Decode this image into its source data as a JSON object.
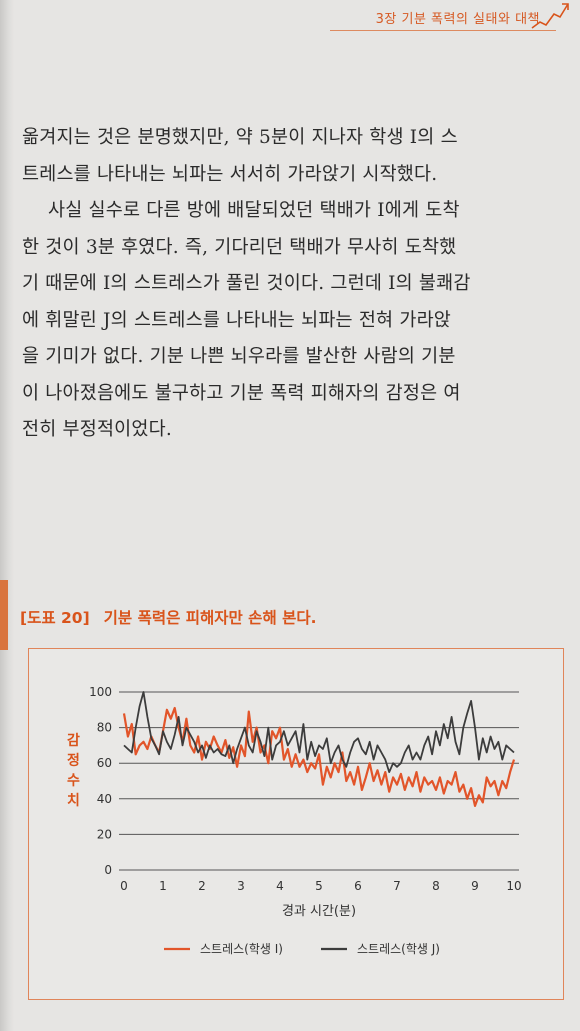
{
  "header": {
    "running_title": "3장 기분 폭력의 실태와 대책"
  },
  "body_paragraphs": [
    {
      "lines": [
        "옮겨지는 것은 분명했지만, 약 5분이 지나자 학생 I의 스",
        "트레스를 나타내는 뇌파는 서서히 가라앉기 시작했다."
      ]
    },
    {
      "lines": [
        "사실 실수로 다른 방에 배달되었던 택배가 I에게 도착",
        "한 것이 3분 후였다. 즉, 기다리던 택배가 무사히 도착했",
        "기 때문에 I의 스트레스가 풀린 것이다. 그런데 I의 불쾌감",
        "에 휘말린 J의 스트레스를 나타내는 뇌파는 전혀 가라앉",
        "을 기미가 없다. 기분 나쁜 뇌우라를 발산한 사람의 기분",
        "이 나아졌음에도 불구하고 기분 폭력 피해자의 감정은 여",
        "전히 부정적이었다."
      ]
    }
  ],
  "figure": {
    "number": "[도표 20]",
    "title": "기분 폭력은 피해자만 손해 본다."
  },
  "chart_data": {
    "type": "line",
    "title": "",
    "xlabel": "경과 시간(분)",
    "ylabel": "감정 수치",
    "xlim": [
      0,
      10
    ],
    "ylim": [
      0,
      100
    ],
    "x_ticks": [
      0,
      1,
      2,
      3,
      4,
      5,
      6,
      7,
      8,
      9,
      10
    ],
    "y_ticks": [
      0,
      20,
      40,
      60,
      80,
      100
    ],
    "grid": "horizontal",
    "legend_position": "bottom",
    "colors": {
      "I": "#e2552a",
      "J": "#3c3c3c",
      "grid": "#555555",
      "accent": "#d9541b"
    },
    "series": [
      {
        "name": "스트레스(학생 I)",
        "color": "#e2552a",
        "x": [
          0,
          0.1,
          0.2,
          0.3,
          0.4,
          0.5,
          0.6,
          0.7,
          0.8,
          0.9,
          1.0,
          1.1,
          1.2,
          1.3,
          1.4,
          1.5,
          1.6,
          1.7,
          1.8,
          1.9,
          2.0,
          2.1,
          2.2,
          2.3,
          2.4,
          2.5,
          2.6,
          2.7,
          2.8,
          2.9,
          3.0,
          3.1,
          3.2,
          3.3,
          3.4,
          3.5,
          3.6,
          3.7,
          3.8,
          3.9,
          4.0,
          4.1,
          4.2,
          4.3,
          4.4,
          4.5,
          4.6,
          4.7,
          4.8,
          4.9,
          5.0,
          5.1,
          5.2,
          5.3,
          5.4,
          5.5,
          5.6,
          5.7,
          5.8,
          5.9,
          6.0,
          6.1,
          6.2,
          6.3,
          6.4,
          6.5,
          6.6,
          6.7,
          6.8,
          6.9,
          7.0,
          7.1,
          7.2,
          7.3,
          7.4,
          7.5,
          7.6,
          7.7,
          7.8,
          7.9,
          8.0,
          8.1,
          8.2,
          8.3,
          8.4,
          8.5,
          8.6,
          8.7,
          8.8,
          8.9,
          9.0,
          9.1,
          9.2,
          9.3,
          9.4,
          9.5,
          9.6,
          9.7,
          9.8,
          9.9,
          10.0
        ],
        "y": [
          88,
          75,
          82,
          65,
          70,
          72,
          68,
          75,
          70,
          66,
          78,
          90,
          85,
          91,
          80,
          72,
          85,
          70,
          66,
          75,
          62,
          72,
          68,
          75,
          70,
          66,
          73,
          63,
          69,
          58,
          70,
          64,
          89,
          72,
          80,
          66,
          70,
          60,
          78,
          74,
          80,
          62,
          68,
          58,
          65,
          58,
          62,
          55,
          60,
          57,
          65,
          48,
          58,
          52,
          60,
          55,
          66,
          50,
          55,
          48,
          58,
          45,
          52,
          60,
          50,
          56,
          48,
          55,
          44,
          52,
          48,
          54,
          45,
          52,
          47,
          55,
          44,
          52,
          48,
          50,
          45,
          52,
          43,
          50,
          48,
          55,
          44,
          48,
          40,
          46,
          36,
          42,
          38,
          52,
          47,
          50,
          42,
          50,
          46,
          55,
          62
        ]
      },
      {
        "name": "스트레스(학생 J)",
        "color": "#3c3c3c",
        "x": [
          0,
          0.1,
          0.2,
          0.3,
          0.4,
          0.5,
          0.6,
          0.7,
          0.8,
          0.9,
          1.0,
          1.1,
          1.2,
          1.3,
          1.4,
          1.5,
          1.6,
          1.7,
          1.8,
          1.9,
          2.0,
          2.1,
          2.2,
          2.3,
          2.4,
          2.5,
          2.6,
          2.7,
          2.8,
          2.9,
          3.0,
          3.1,
          3.2,
          3.3,
          3.4,
          3.5,
          3.6,
          3.7,
          3.8,
          3.9,
          4.0,
          4.1,
          4.2,
          4.3,
          4.4,
          4.5,
          4.6,
          4.7,
          4.8,
          4.9,
          5.0,
          5.1,
          5.2,
          5.3,
          5.4,
          5.5,
          5.6,
          5.7,
          5.8,
          5.9,
          6.0,
          6.1,
          6.2,
          6.3,
          6.4,
          6.5,
          6.6,
          6.7,
          6.8,
          6.9,
          7.0,
          7.1,
          7.2,
          7.3,
          7.4,
          7.5,
          7.6,
          7.7,
          7.8,
          7.9,
          8.0,
          8.1,
          8.2,
          8.3,
          8.4,
          8.5,
          8.6,
          8.7,
          8.8,
          8.9,
          9.0,
          9.1,
          9.2,
          9.3,
          9.4,
          9.5,
          9.6,
          9.7,
          9.8,
          9.9,
          10.0
        ],
        "y": [
          70,
          68,
          66,
          80,
          92,
          100,
          86,
          74,
          70,
          65,
          78,
          72,
          68,
          76,
          86,
          70,
          80,
          76,
          72,
          66,
          70,
          63,
          70,
          66,
          68,
          65,
          64,
          70,
          60,
          68,
          74,
          80,
          70,
          66,
          78,
          72,
          64,
          80,
          62,
          70,
          72,
          78,
          70,
          74,
          78,
          66,
          82,
          62,
          72,
          64,
          70,
          68,
          74,
          60,
          66,
          70,
          62,
          58,
          66,
          72,
          74,
          68,
          65,
          72,
          62,
          70,
          66,
          62,
          55,
          60,
          58,
          60,
          66,
          70,
          62,
          66,
          62,
          70,
          75,
          65,
          78,
          70,
          82,
          74,
          86,
          72,
          65,
          80,
          88,
          95,
          80,
          62,
          74,
          66,
          75,
          68,
          72,
          62,
          70,
          68,
          66
        ]
      }
    ]
  }
}
